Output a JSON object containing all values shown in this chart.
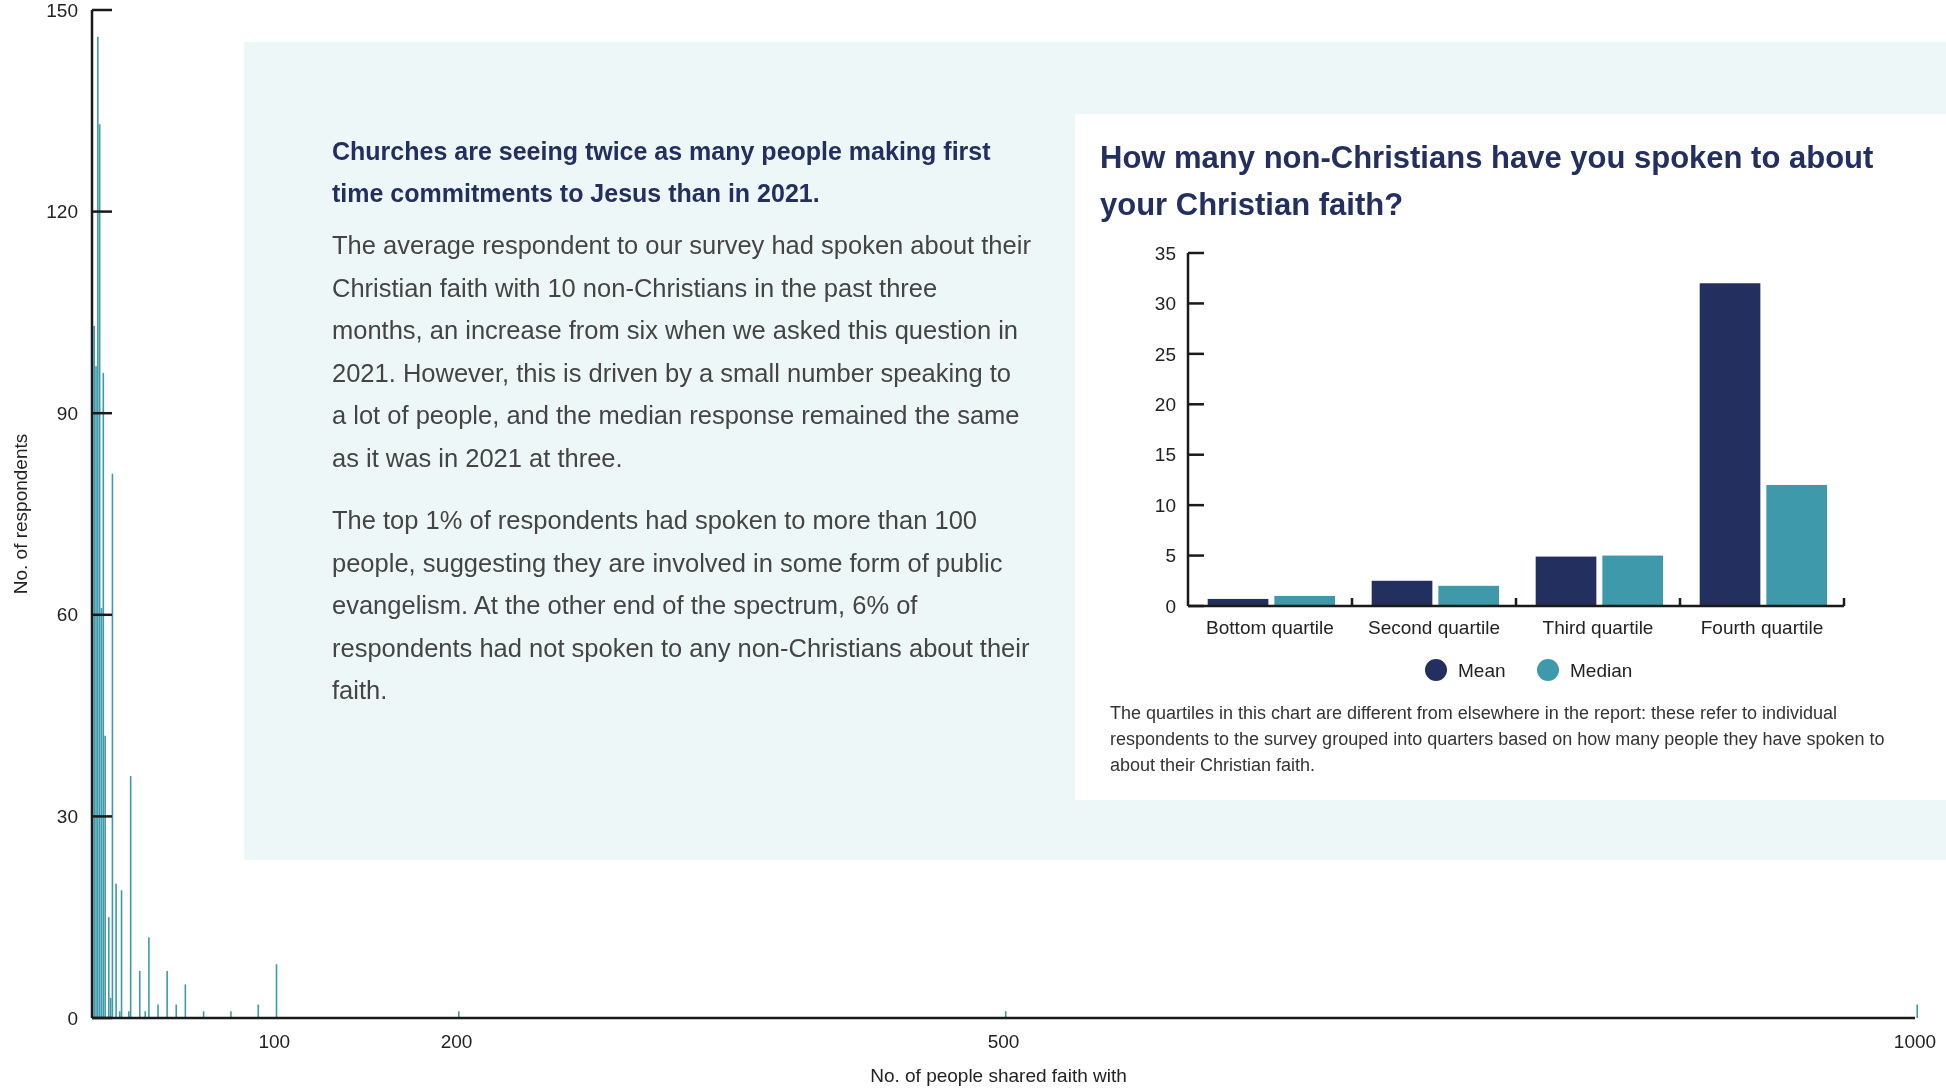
{
  "chart_data": [
    {
      "type": "bar",
      "x": [
        0,
        1,
        2,
        3,
        4,
        5,
        6,
        8,
        9,
        10,
        12,
        14,
        15,
        19,
        20,
        25,
        28,
        30,
        35,
        40,
        45,
        50,
        60,
        75,
        90,
        100,
        200,
        500,
        1000
      ],
      "values": [
        103,
        97,
        146,
        133,
        61,
        96,
        42,
        15,
        3,
        81,
        20,
        1,
        19,
        1,
        36,
        7,
        1,
        12,
        2,
        7,
        2,
        5,
        1,
        1,
        2,
        8,
        1,
        1,
        2
      ],
      "color": "#3e9aab",
      "xlim": [
        0,
        1000
      ],
      "ylim": [
        0,
        150
      ],
      "xticks": [
        100,
        200,
        500,
        1000
      ],
      "yticks": [
        0,
        30,
        60,
        90,
        120,
        150
      ],
      "xlabel": "No. of people shared faith with",
      "ylabel": "No. of respondents"
    },
    {
      "type": "other",
      "title": "Churches are seeing twice as many people making first time commitments to Jesus than in 2021.",
      "annotations": [
        "The average respondent to our survey had spoken about their Christian faith with 10 non-Christians in the past three months, an increase from six when we asked this question in 2021. However, this is driven by a small number speaking to a lot of people, and the median response remained the same as it was in 2021 at three.",
        "The top 1% of respondents had spoken to more than 100 people, suggesting they are involved in some form of public evangelism. At the other end of the spectrum, 6% of respondents had not spoken to any non-Christians about their faith."
      ]
    },
    {
      "type": "bar",
      "title": "How many non-Christians have you spoken to about your Christian faith?",
      "categories": [
        "Bottom quartile",
        "Second quartile",
        "Third quartile",
        "Fourth quartile"
      ],
      "series": [
        {
          "name": "Mean",
          "color": "#232f5e",
          "values": [
            0.7,
            2.5,
            4.9,
            32
          ]
        },
        {
          "name": "Median",
          "color": "#3e9aab",
          "values": [
            1,
            2,
            5,
            12
          ]
        }
      ],
      "ylim": [
        0,
        35
      ],
      "yticks": [
        0,
        5,
        10,
        15,
        20,
        25,
        30,
        35
      ],
      "legend": "bottom",
      "annotations": [
        "The quartiles in this chart are different from elsewhere in the report: these refer to individual respondents to the survey grouped into quarters based on how many people they have spoken to about their Christian faith."
      ]
    }
  ]
}
